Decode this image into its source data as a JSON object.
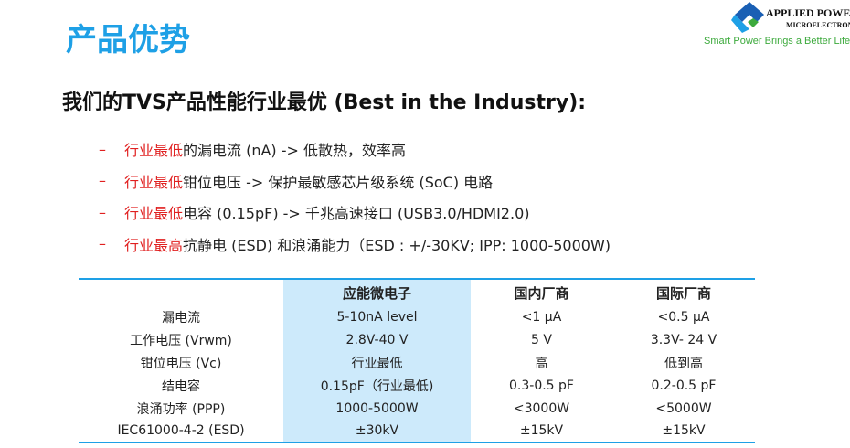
{
  "title": "产品优势",
  "logo": {
    "line1": "APPLIED POWER",
    "line2": "MICROELECTRONICS",
    "tagline": "Smart Power Brings a Better Life",
    "colors": {
      "blue": "#1a5fb4",
      "green": "#3daa3d"
    }
  },
  "subtitle": "我们的TVS产品性能行业最优 (Best in the Industry):",
  "bullets": [
    {
      "dash": "–",
      "highlight": "行业最低",
      "text": "的漏电流 (nA) -> 低散热，效率高"
    },
    {
      "dash": "–",
      "highlight": "行业最低",
      "text": "钳位电压 -> 保护最敏感芯片级系统 (SoC) 电路"
    },
    {
      "dash": "–",
      "highlight": "行业最低",
      "text": "电容 (0.15pF) -> 千兆高速接口 (USB3.0/HDMI2.0)"
    },
    {
      "dash": "–",
      "highlight": "行业最高",
      "text": "抗静电 (ESD) 和浪涌能力（ESD : +/-30KV; IPP: 1000-5000W)"
    }
  ],
  "table": {
    "headers": [
      "",
      "应能微电子",
      "国内厂商",
      "国际厂商"
    ],
    "rows": [
      [
        "漏电流",
        "5-10nA level",
        "<1 µA",
        "<0.5 µA"
      ],
      [
        "工作电压 (Vrwm)",
        "2.8V-40 V",
        "5 V",
        "3.3V- 24 V"
      ],
      [
        "钳位电压 (Vc)",
        "行业最低",
        "高",
        "低到高"
      ],
      [
        "结电容",
        "0.15pF（行业最低)",
        "0.3-0.5 pF",
        "0.2-0.5 pF"
      ],
      [
        "浪涌功率 (PPP)",
        "1000-5000W",
        "<3000W",
        "<5000W"
      ],
      [
        "IEC61000-4-2 (ESD)",
        "±30kV",
        "±15kV",
        "±15kV"
      ]
    ]
  },
  "colors": {
    "accent": "#1ea0e6",
    "highlight": "#e02020",
    "column_bg": "#cdeafb"
  }
}
